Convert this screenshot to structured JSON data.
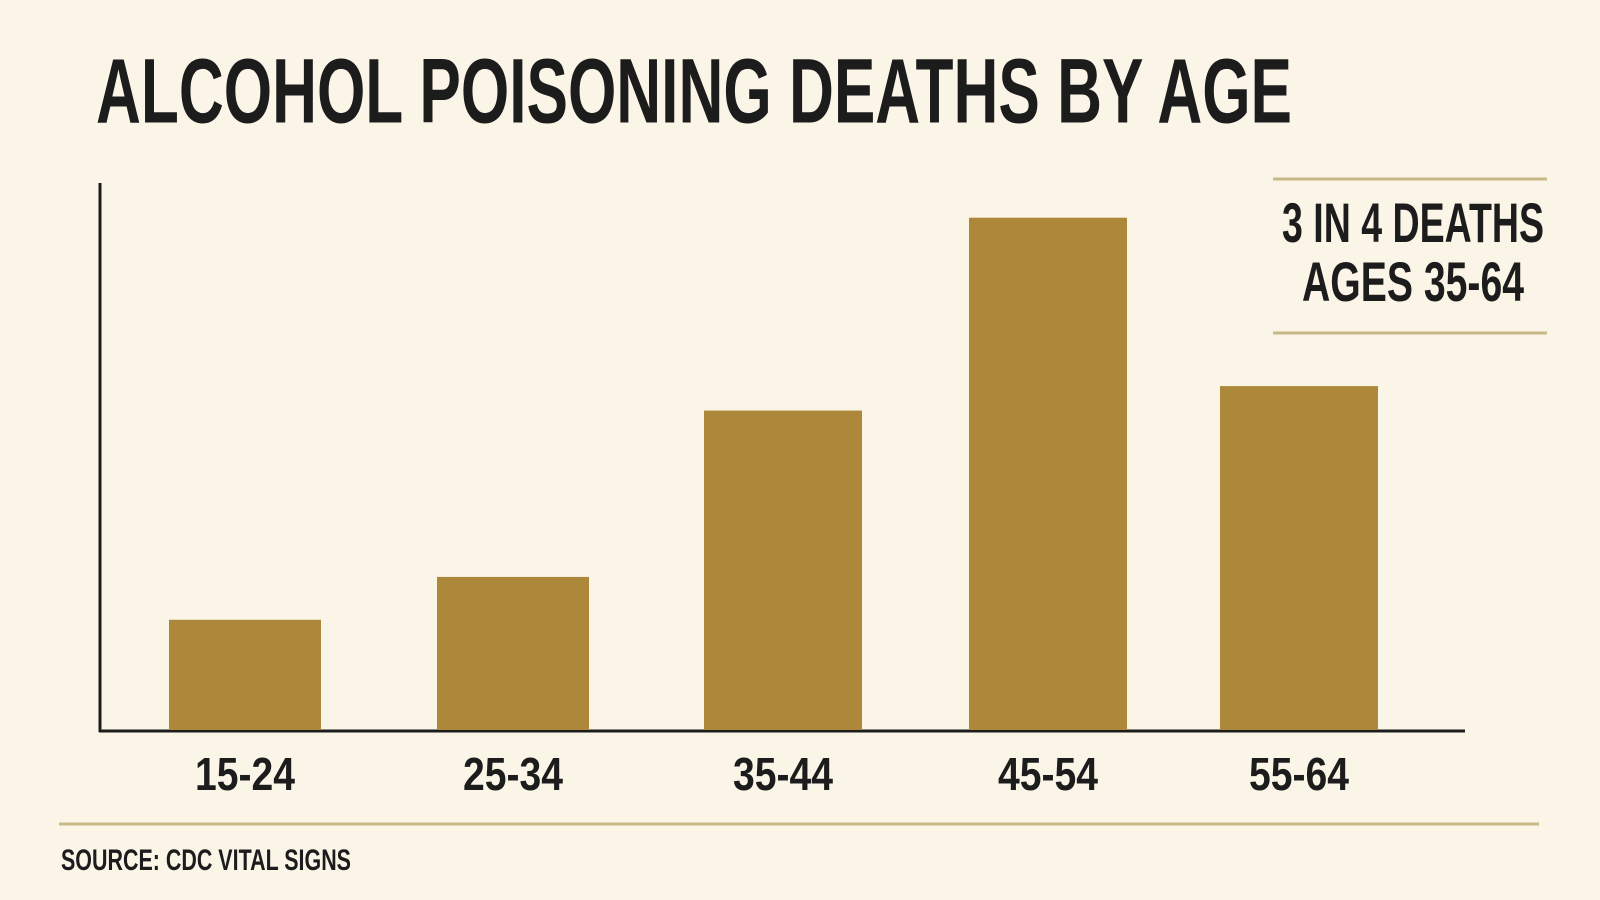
{
  "chart_data": {
    "type": "bar",
    "title": "ALCOHOL POISONING DEATHS BY AGE",
    "categories": [
      "15-24",
      "25-34",
      "35-44",
      "45-54",
      "55-64"
    ],
    "values": [
      108,
      150,
      313,
      502,
      337
    ],
    "color": "#ad883b",
    "ylim": [
      0,
      536
    ],
    "annotation": [
      "3 IN 4 DEATHS",
      "AGES 35-64"
    ],
    "source": "SOURCE: CDC VITAL SIGNS"
  }
}
